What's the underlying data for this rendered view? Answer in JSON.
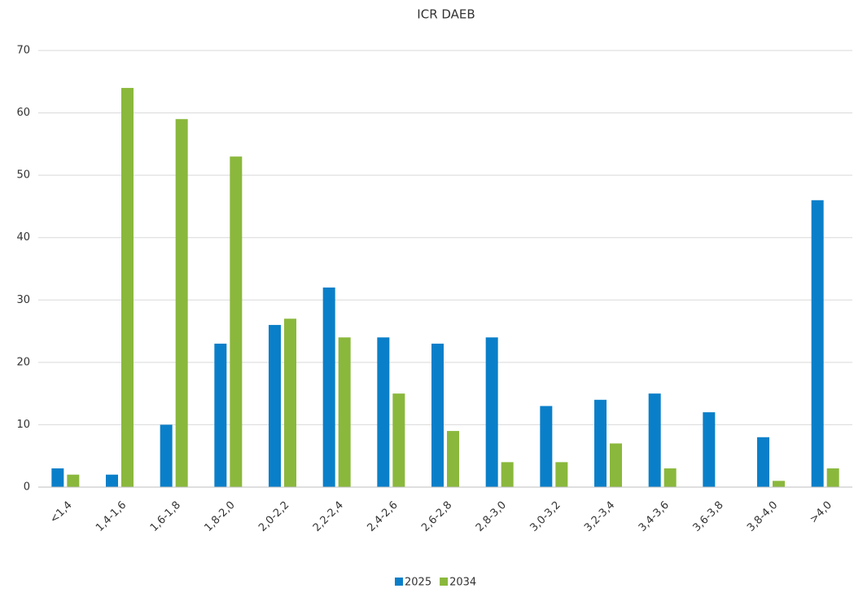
{
  "chart_data": {
    "type": "bar",
    "title": "ICR DAEB",
    "categories": [
      "<1,4",
      "1,4-1,6",
      "1,6-1,8",
      "1,8-2,0",
      "2,0-2,2",
      "2,2-2,4",
      "2,4-2,6",
      "2,6-2,8",
      "2,8-3,0",
      "3,0-3,2",
      "3,2-3,4",
      "3,4-3,6",
      "3,6-3,8",
      "3,8-4,0",
      ">4,0"
    ],
    "series": [
      {
        "name": "2025",
        "color": "#0a7fc9",
        "values": [
          3,
          2,
          10,
          23,
          26,
          32,
          24,
          23,
          24,
          13,
          14,
          15,
          12,
          8,
          46
        ]
      },
      {
        "name": "2034",
        "color": "#8ab83c",
        "values": [
          2,
          64,
          59,
          53,
          27,
          24,
          15,
          9,
          4,
          4,
          7,
          3,
          0,
          1,
          3
        ]
      }
    ],
    "ylim": [
      0,
      70
    ],
    "yticks": [
      0,
      10,
      20,
      30,
      40,
      50,
      60,
      70
    ],
    "grid": true,
    "legend": "bottom"
  }
}
